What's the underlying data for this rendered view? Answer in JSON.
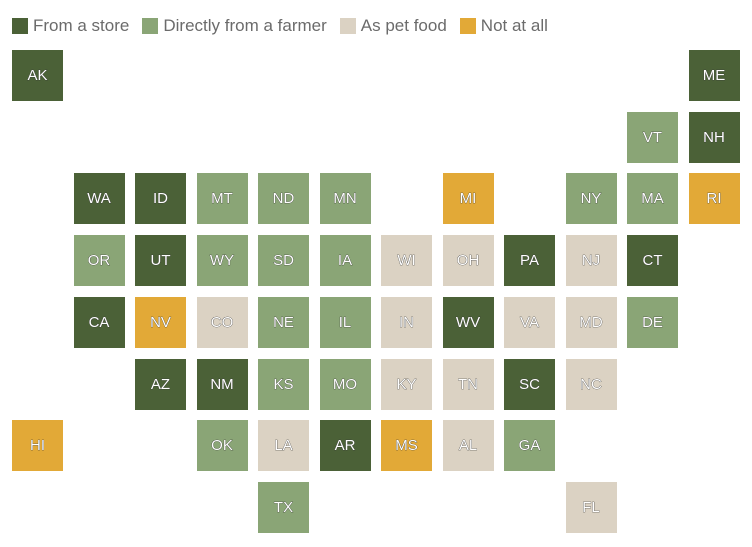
{
  "legend": [
    {
      "label": "From a store",
      "color": "#4b6137"
    },
    {
      "label": "Directly from a farmer",
      "color": "#8aa576"
    },
    {
      "label": "As pet food",
      "color": "#dbd2c3"
    },
    {
      "label": "Not at all",
      "color": "#e2a937"
    }
  ],
  "states": [
    {
      "name": "AK",
      "category": "From a store"
    },
    {
      "name": "ME",
      "category": "From a store"
    },
    {
      "name": "VT",
      "category": "Directly from a farmer"
    },
    {
      "name": "NH",
      "category": "From a store"
    },
    {
      "name": "WA",
      "category": "From a store"
    },
    {
      "name": "ID",
      "category": "From a store"
    },
    {
      "name": "MT",
      "category": "Directly from a farmer"
    },
    {
      "name": "ND",
      "category": "Directly from a farmer"
    },
    {
      "name": "MN",
      "category": "Directly from a farmer"
    },
    {
      "name": "MI",
      "category": "Not at all"
    },
    {
      "name": "NY",
      "category": "Directly from a farmer"
    },
    {
      "name": "MA",
      "category": "Directly from a farmer"
    },
    {
      "name": "RI",
      "category": "Not at all"
    },
    {
      "name": "OR",
      "category": "Directly from a farmer"
    },
    {
      "name": "UT",
      "category": "From a store"
    },
    {
      "name": "WY",
      "category": "Directly from a farmer"
    },
    {
      "name": "SD",
      "category": "Directly from a farmer"
    },
    {
      "name": "IA",
      "category": "Directly from a farmer"
    },
    {
      "name": "WI",
      "category": "As pet food"
    },
    {
      "name": "OH",
      "category": "As pet food"
    },
    {
      "name": "PA",
      "category": "From a store"
    },
    {
      "name": "NJ",
      "category": "As pet food"
    },
    {
      "name": "CT",
      "category": "From a store"
    },
    {
      "name": "CA",
      "category": "From a store"
    },
    {
      "name": "NV",
      "category": "Not at all"
    },
    {
      "name": "CO",
      "category": "As pet food"
    },
    {
      "name": "NE",
      "category": "Directly from a farmer"
    },
    {
      "name": "IL",
      "category": "Directly from a farmer"
    },
    {
      "name": "IN",
      "category": "As pet food"
    },
    {
      "name": "WV",
      "category": "From a store"
    },
    {
      "name": "VA",
      "category": "As pet food"
    },
    {
      "name": "MD",
      "category": "As pet food"
    },
    {
      "name": "DE",
      "category": "Directly from a farmer"
    },
    {
      "name": "AZ",
      "category": "From a store"
    },
    {
      "name": "NM",
      "category": "From a store"
    },
    {
      "name": "KS",
      "category": "Directly from a farmer"
    },
    {
      "name": "MO",
      "category": "Directly from a farmer"
    },
    {
      "name": "KY",
      "category": "As pet food"
    },
    {
      "name": "TN",
      "category": "As pet food"
    },
    {
      "name": "SC",
      "category": "From a store"
    },
    {
      "name": "NC",
      "category": "As pet food"
    },
    {
      "name": "HI",
      "category": "Not at all"
    },
    {
      "name": "OK",
      "category": "Directly from a farmer"
    },
    {
      "name": "LA",
      "category": "As pet food"
    },
    {
      "name": "AR",
      "category": "From a store"
    },
    {
      "name": "MS",
      "category": "Not at all"
    },
    {
      "name": "AL",
      "category": "As pet food"
    },
    {
      "name": "GA",
      "category": "Directly from a farmer"
    },
    {
      "name": "TX",
      "category": "Directly from a farmer"
    },
    {
      "name": "FL",
      "category": "As pet food"
    }
  ]
}
